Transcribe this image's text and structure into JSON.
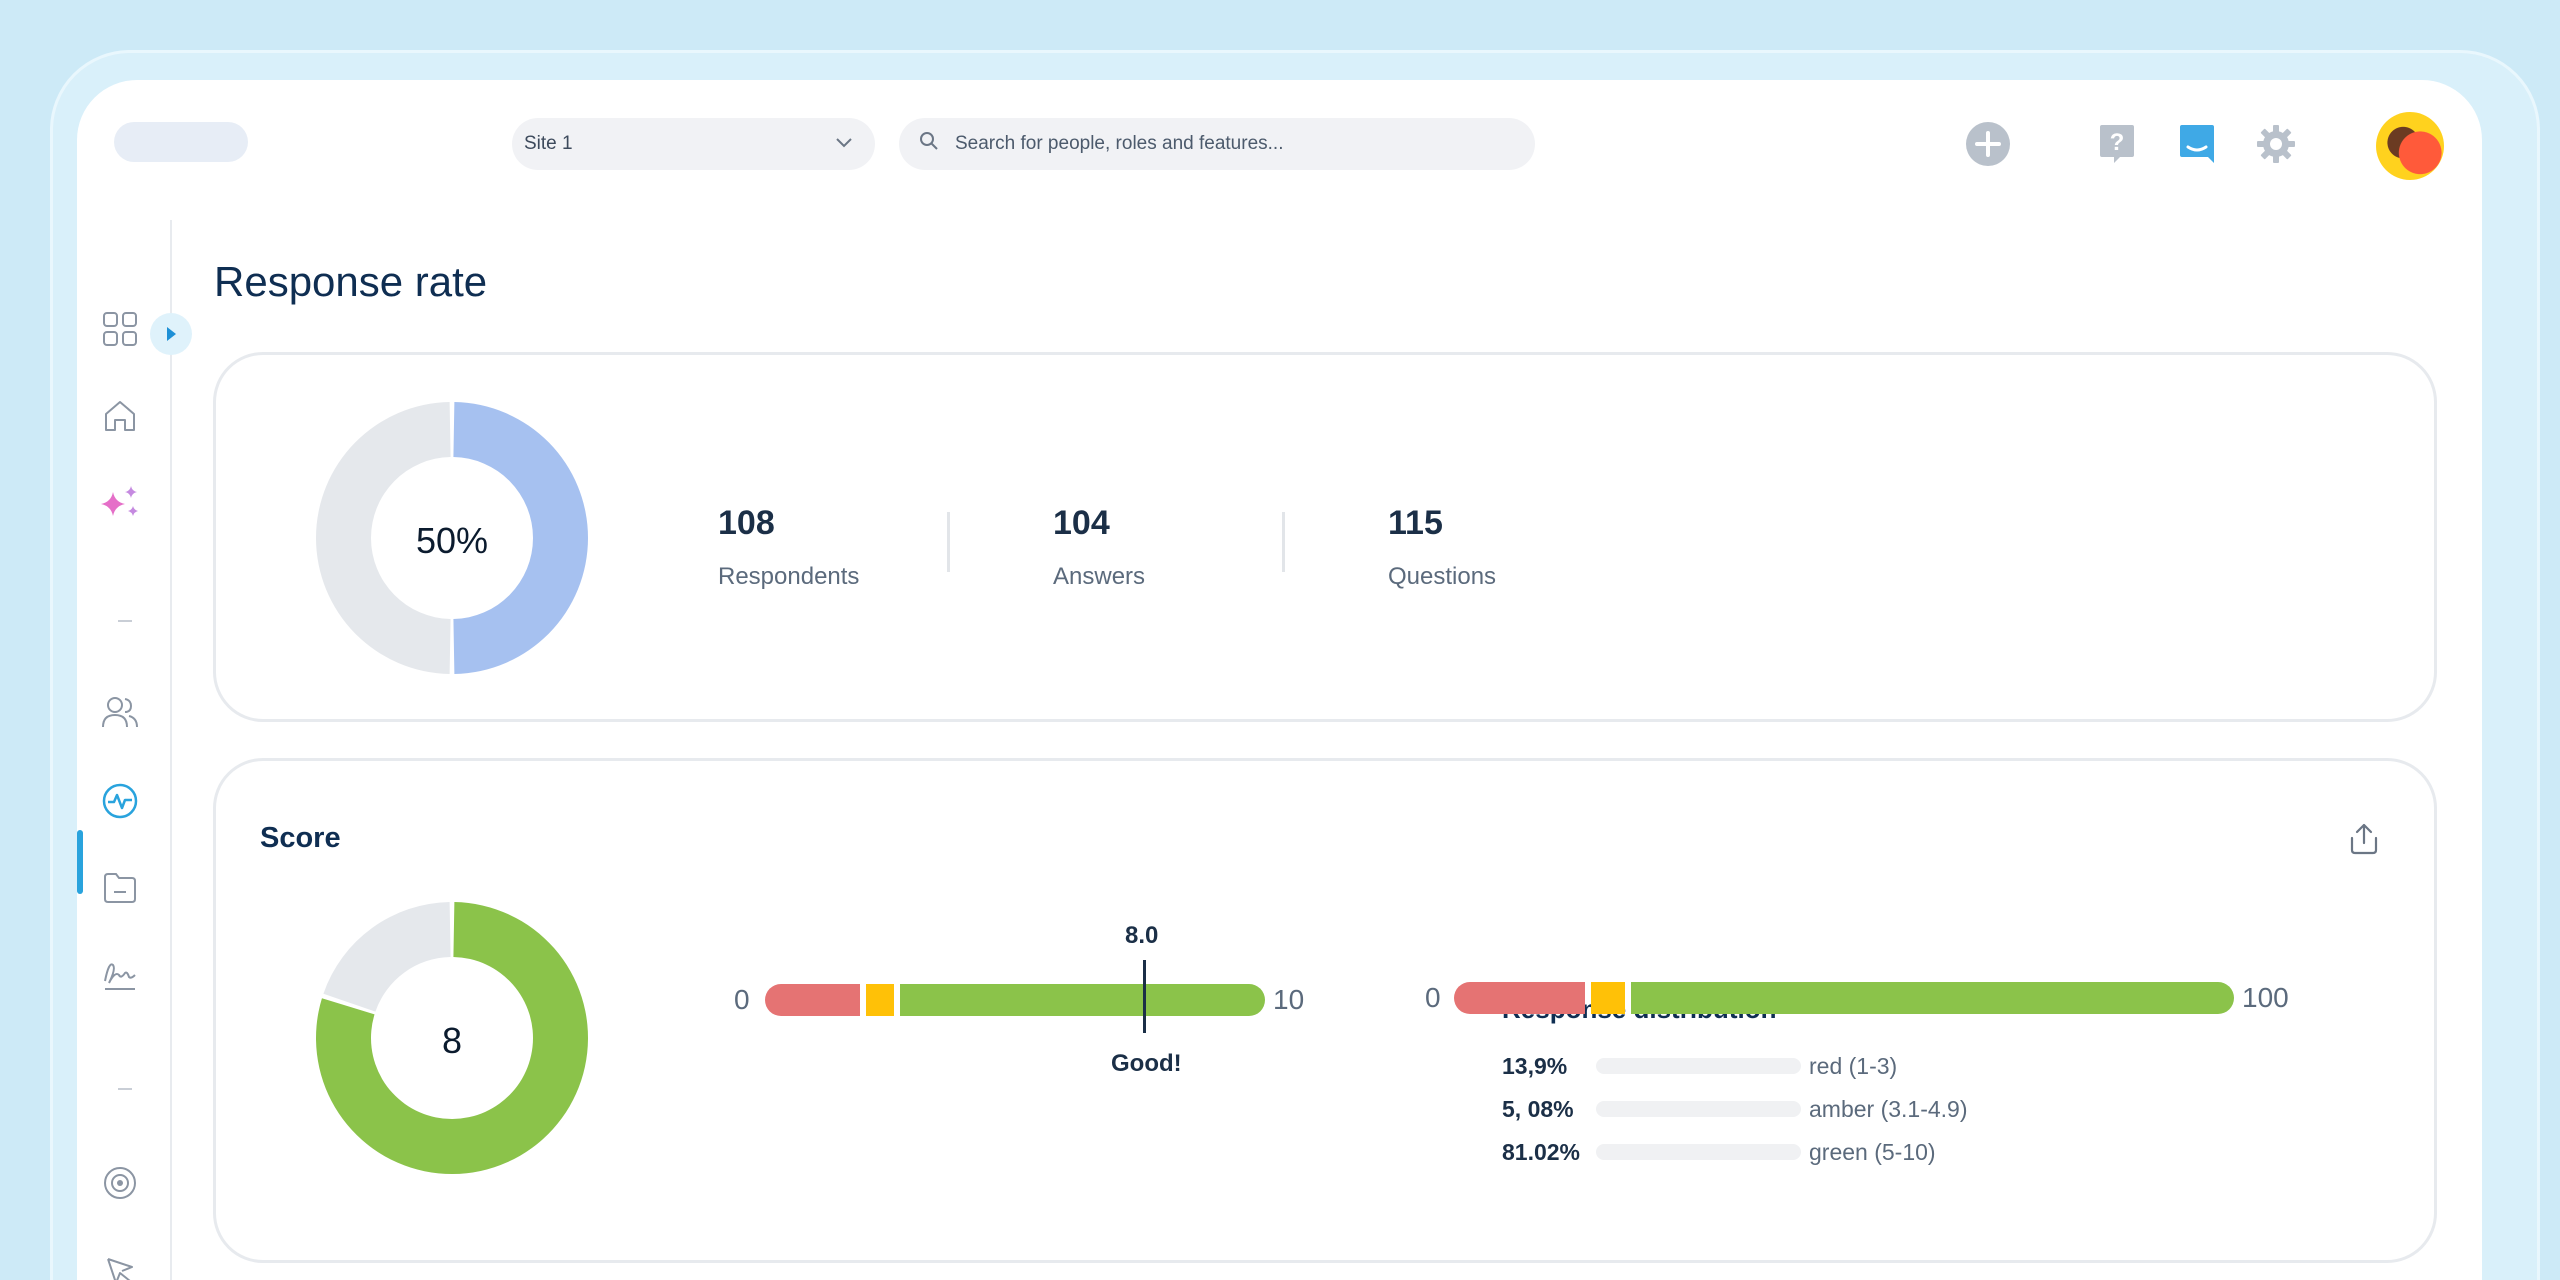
{
  "topbar": {
    "site_select": "Site 1",
    "search_placeholder": "Search for people, roles and features..."
  },
  "page": {
    "title": "Response rate"
  },
  "response_rate": {
    "percent_label": "50%",
    "percent_value": 50,
    "stats": [
      {
        "value": "108",
        "label": "Respondents"
      },
      {
        "value": "104",
        "label": "Answers"
      },
      {
        "value": "115",
        "label": "Questions"
      }
    ]
  },
  "score": {
    "title": "Score",
    "value_label": "8",
    "value": 8,
    "scale": {
      "min": "0",
      "max": "10",
      "marker": "8.0",
      "marker_value": 8.0,
      "verdict": "Good!"
    },
    "distribution": {
      "title": "Response distribution",
      "min": "0",
      "max": "100",
      "rows": [
        {
          "pct": "13,9%",
          "label": "red (1-3)"
        },
        {
          "pct": "5, 08%",
          "label": "amber (3.1-4.9)"
        },
        {
          "pct": "81.02%",
          "label": "green (5-10)"
        }
      ]
    }
  },
  "colors": {
    "blue_fill": "#a6c1f0",
    "gray_track": "#e5e8ec",
    "green": "#8bc34a",
    "red": "#e57373",
    "amber": "#ffc107",
    "accent": "#29a3dd"
  },
  "icons": [
    "apps-grid-icon",
    "home-icon",
    "sparkles-icon",
    "people-icon",
    "activity-icon",
    "folder-icon",
    "signature-icon",
    "target-icon",
    "cursor-icon",
    "plus-circle-icon",
    "help-icon",
    "chat-icon",
    "gear-icon",
    "share-icon",
    "search-icon",
    "chevron-down-icon"
  ]
}
